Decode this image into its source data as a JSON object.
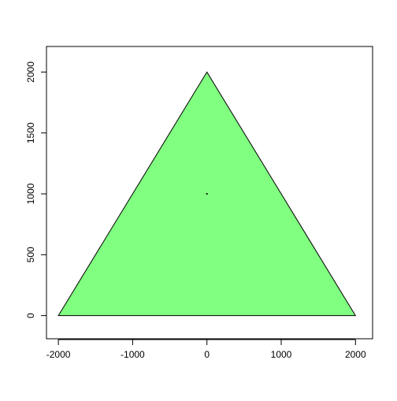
{
  "chart_data": {
    "type": "area",
    "title": "",
    "xlabel": "",
    "ylabel": "",
    "xlim": [
      -2160,
      2230
    ],
    "ylim": [
      -190,
      2210
    ],
    "x_ticks": [
      -2000,
      -1000,
      0,
      1000,
      2000
    ],
    "x_tick_labels": [
      "-2000",
      "-1000",
      "0",
      "1000",
      "2000"
    ],
    "y_ticks": [
      0,
      500,
      1000,
      1500,
      2000
    ],
    "y_tick_labels": [
      "0",
      "500",
      "1000",
      "1500",
      "2000"
    ],
    "grid": false,
    "polygon": {
      "x": [
        -2000,
        2000,
        0
      ],
      "y": [
        0,
        0,
        2000
      ],
      "fill_color": "#80ff80",
      "border_color": "#000000"
    },
    "points": [
      {
        "x": 0,
        "y": 1000
      }
    ]
  }
}
